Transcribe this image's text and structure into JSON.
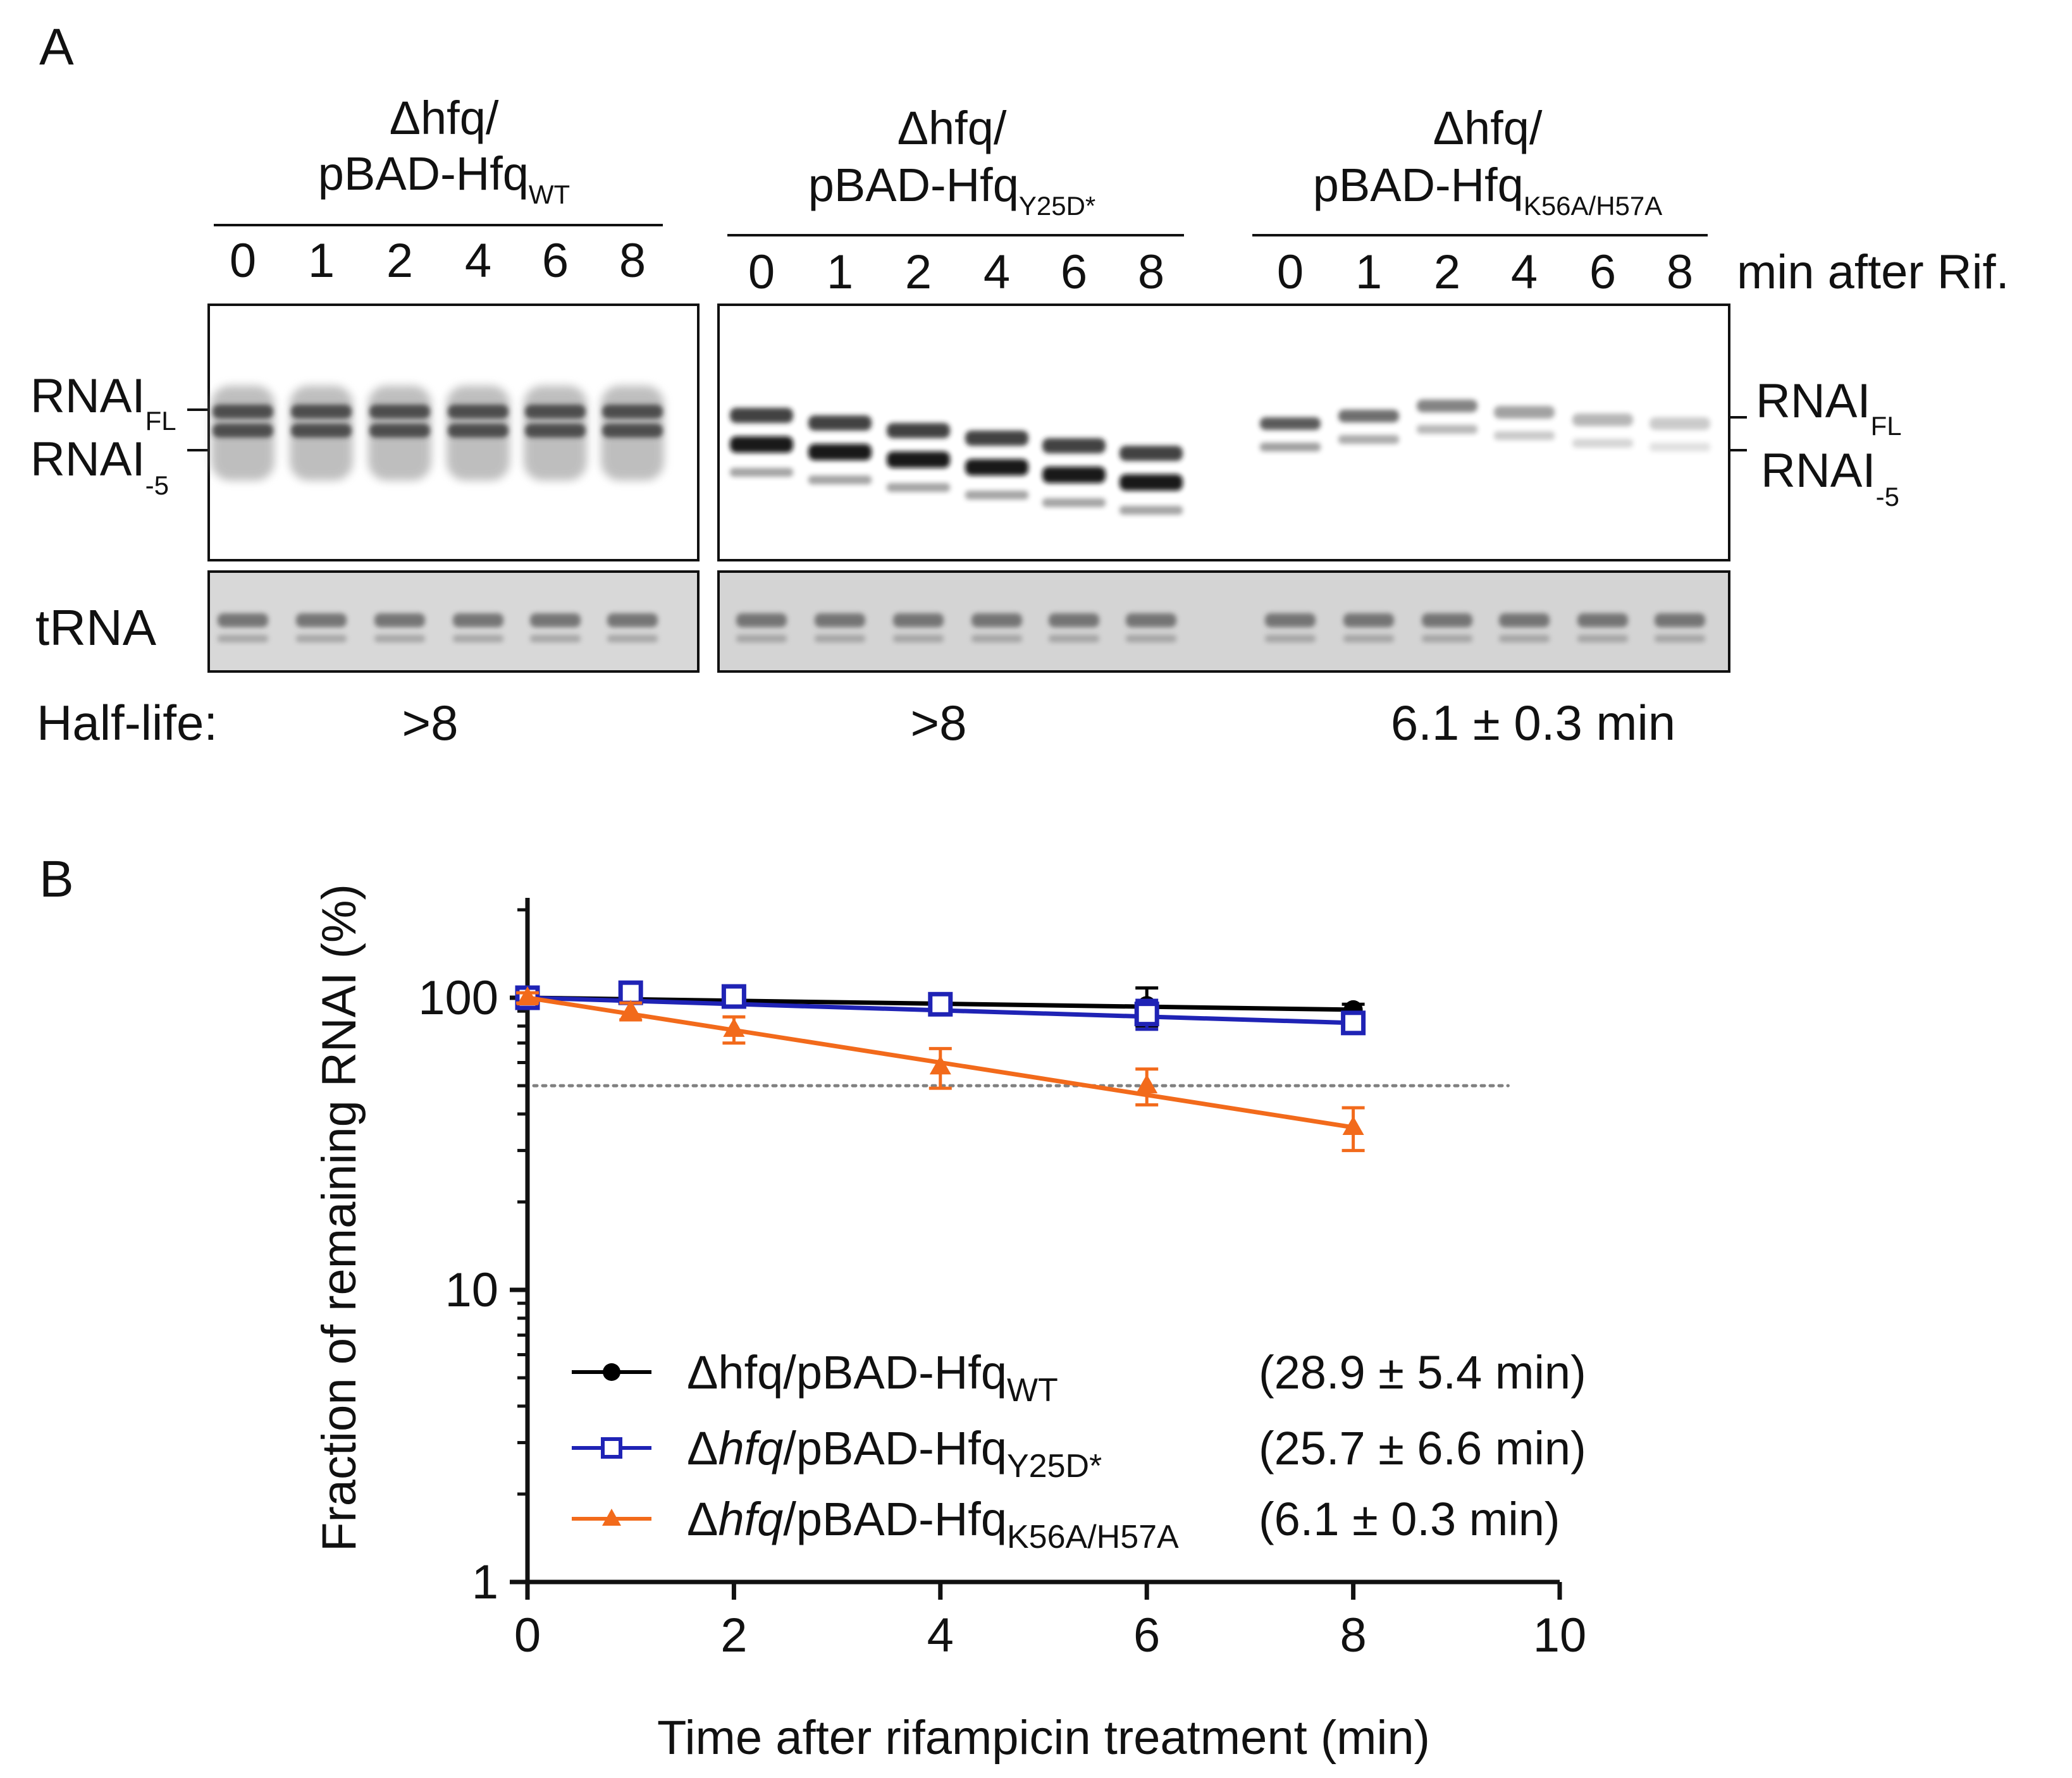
{
  "panel_a": {
    "label": "A",
    "groups": [
      {
        "id": "wt",
        "strain_prefix": "Δhfq/",
        "plasmid": "pBAD-Hfq",
        "subscript": "WT",
        "half_life": ">8"
      },
      {
        "id": "y25",
        "strain_prefix": "Δhfq/",
        "plasmid": "pBAD-Hfq",
        "subscript": "Y25D*",
        "half_life": ">8"
      },
      {
        "id": "k56",
        "strain_prefix": "Δhfq/",
        "plasmid": "pBAD-Hfq",
        "subscript": "K56A/H57A",
        "half_life": "6.1 ± 0.3 min"
      }
    ],
    "lanes": [
      "0",
      "1",
      "2",
      "4",
      "6",
      "8"
    ],
    "time_axis_label": "min after Rif.",
    "bands": {
      "rnai": "RNAI",
      "fl_sub": "FL",
      "m5_sub": "-5",
      "trna": "tRNA"
    },
    "half_life_label": "Half-life:"
  },
  "panel_b": {
    "label": "B"
  },
  "chart_data": {
    "type": "line",
    "title": "",
    "xlabel": "Time after rifampicin treatment (min)",
    "ylabel": "Fraction of remaining RNAI (%)",
    "xlim": [
      0,
      10
    ],
    "ylim": [
      1,
      200
    ],
    "yscale": "log",
    "x_ticks": [
      "0",
      "2",
      "4",
      "6",
      "8",
      "10"
    ],
    "y_ticks": [
      "1",
      "10",
      "100"
    ],
    "reference_line": {
      "y": 50,
      "style": "dotted",
      "color": "#808080"
    },
    "legend_position": "bottom-center",
    "series": [
      {
        "name_prefix": "Δhfq/pBAD-Hfq",
        "name_sub": "WT",
        "italic_hfq": false,
        "half_life": "(28.9 ± 5.4 min)",
        "color": "#000000",
        "marker": "circle",
        "x": [
          0,
          1,
          2,
          4,
          6,
          8
        ],
        "y": [
          100,
          103,
          102,
          96,
          94,
          91
        ],
        "err": [
          4,
          5,
          5,
          5,
          14,
          4
        ]
      },
      {
        "name_prefix": "Δhfq/pBAD-Hfq",
        "name_sub": "Y25D*",
        "italic_hfq": true,
        "half_life": "(25.7 ± 6.6 min)",
        "color": "#1f23b5",
        "marker": "square-open",
        "x": [
          0,
          1,
          2,
          4,
          6,
          8
        ],
        "y": [
          100,
          104,
          101,
          95,
          88,
          82
        ],
        "err": [
          4,
          6,
          5,
          5,
          10,
          6
        ]
      },
      {
        "name_prefix": "Δhfq/pBAD-Hfq",
        "name_sub": "K56A/H57A",
        "italic_hfq": true,
        "half_life": "(6.1 ± 0.3 min)",
        "color": "#f26a1b",
        "marker": "triangle",
        "x": [
          0,
          1,
          2,
          4,
          6,
          8
        ],
        "y": [
          100,
          90,
          78,
          58,
          50,
          36
        ],
        "err": [
          4,
          6,
          8,
          9,
          7,
          6
        ]
      }
    ]
  }
}
